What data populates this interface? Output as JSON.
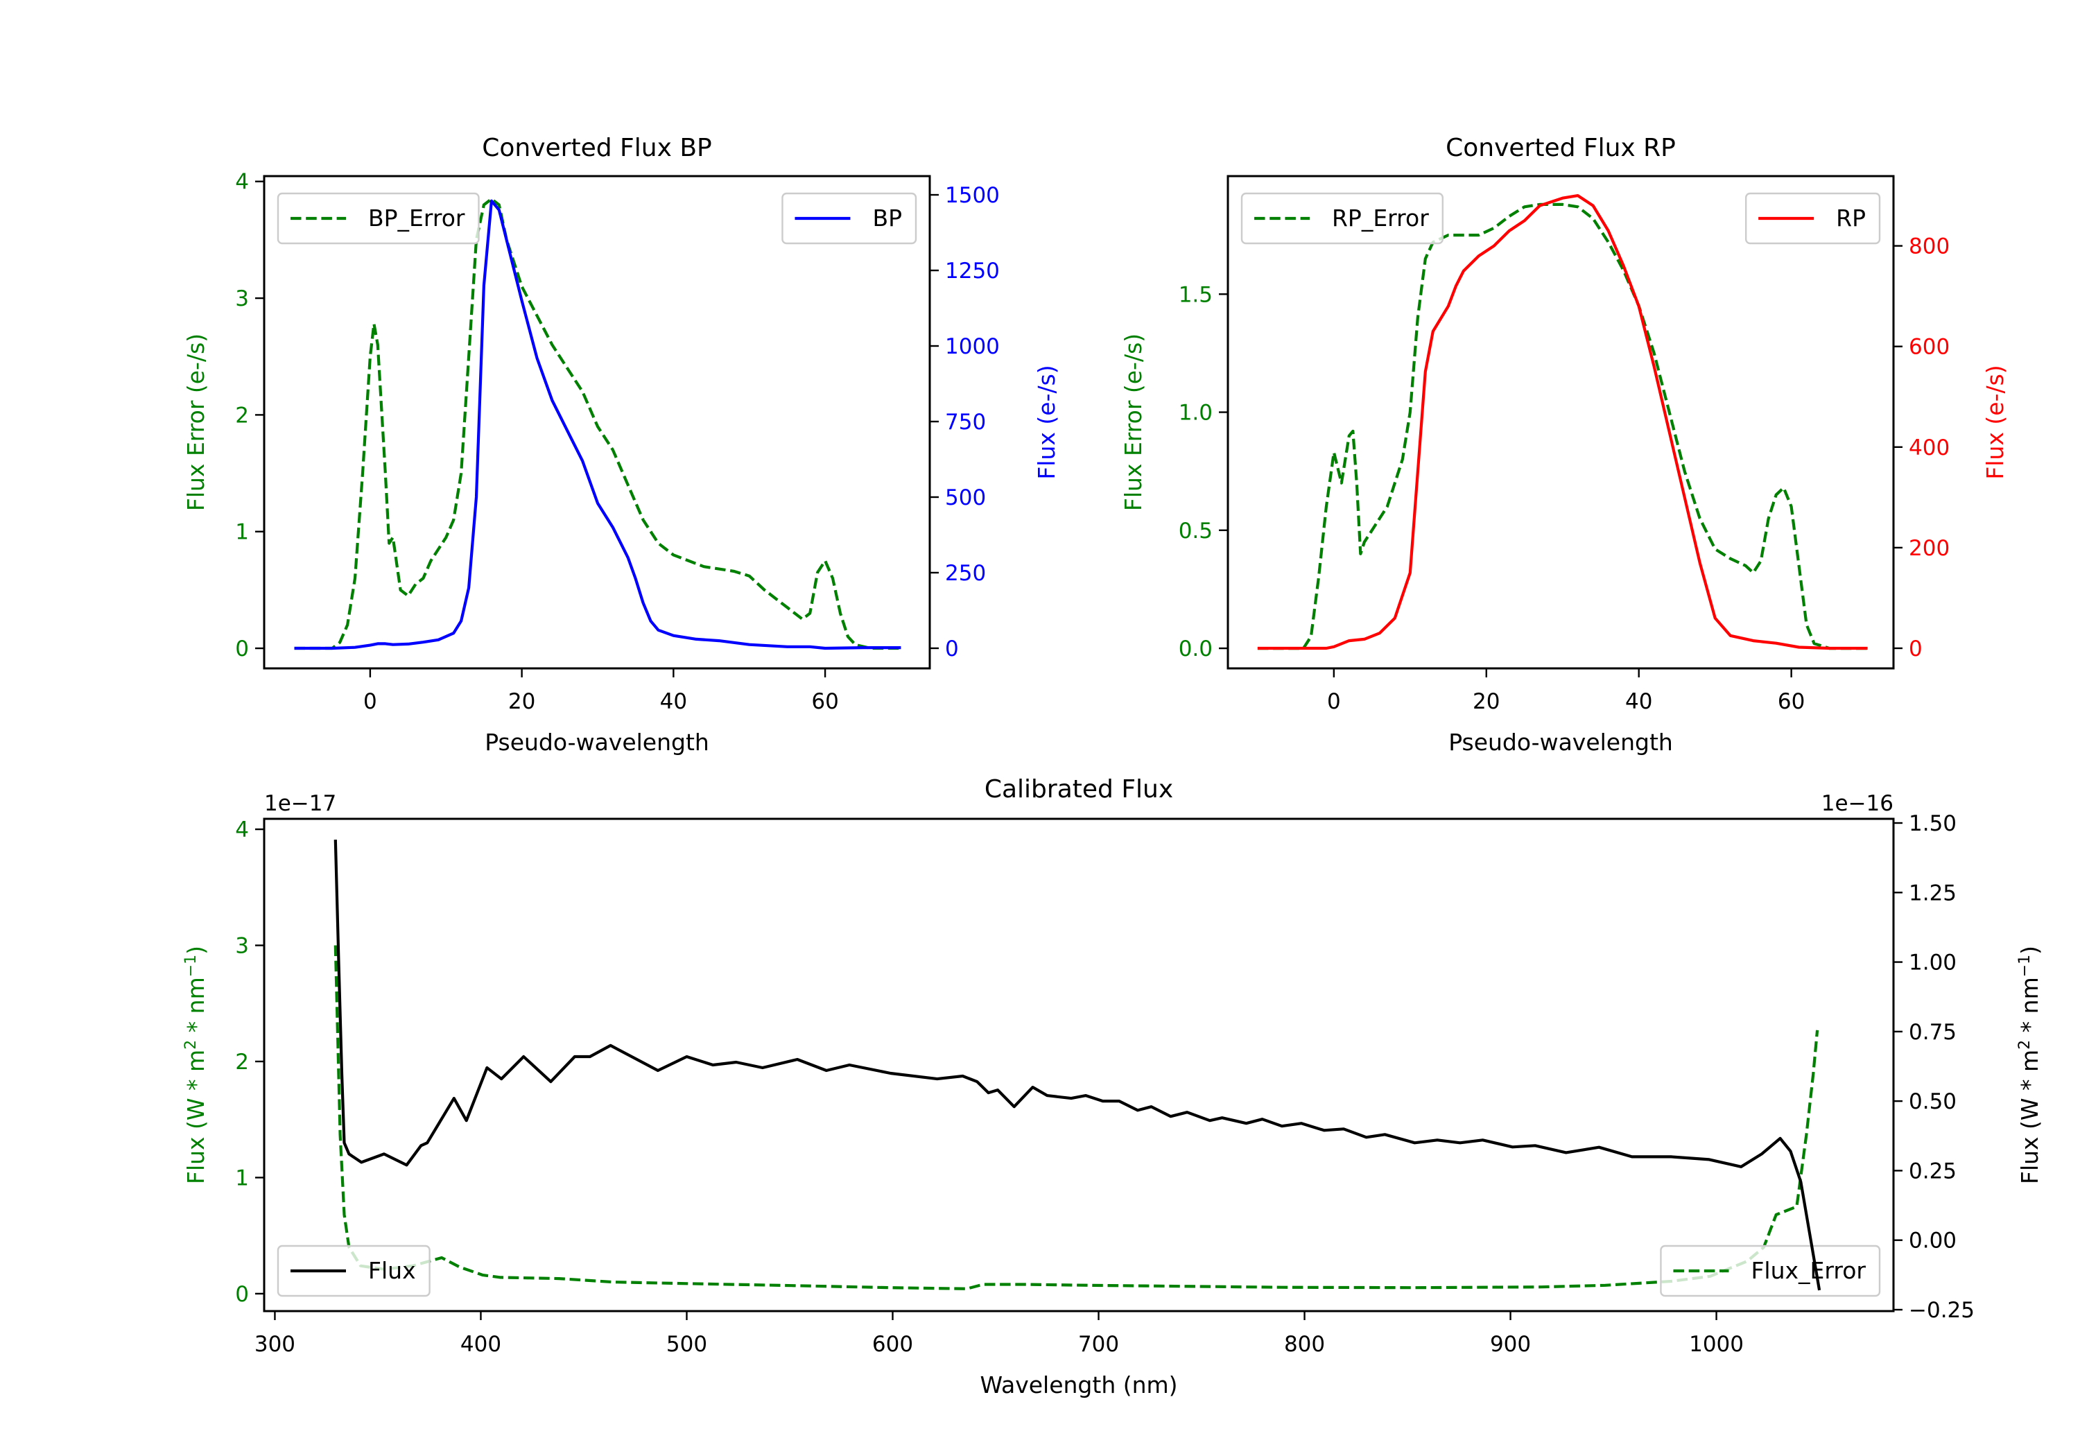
{
  "chart_data": [
    {
      "type": "line",
      "title": "Converted Flux BP",
      "xlabel": "Pseudo-wavelength",
      "xlim": [
        -13.98,
        73.8
      ],
      "xticks": [
        0,
        20,
        40,
        60
      ],
      "xtick_labels": [
        "0",
        "20",
        "40",
        "60"
      ],
      "grid": false,
      "left_axis": {
        "label": "Flux Error (e-/s)",
        "color": "#008000",
        "ylim": [
          -0.172,
          4.046
        ],
        "ticks": [
          0,
          1,
          2,
          3,
          4
        ],
        "tick_labels": [
          "0",
          "1",
          "2",
          "3",
          "4"
        ]
      },
      "right_axis": {
        "label": "Flux (e-/s)",
        "color": "#0000ff",
        "ylim": [
          -66.6,
          1562
        ],
        "ticks": [
          0,
          250,
          500,
          750,
          1000,
          1250,
          1500
        ],
        "tick_labels": [
          "0",
          "250",
          "500",
          "750",
          "1000",
          "1250",
          "1500"
        ]
      },
      "series": [
        {
          "name": "BP_Error",
          "axis": "left",
          "style": "dashed",
          "color": "#008000",
          "legend": "upper left",
          "x": [
            -10,
            -5,
            -4,
            -3,
            -2,
            -1,
            0,
            0.5,
            1,
            2,
            2.5,
            3,
            4,
            5,
            6,
            7,
            8,
            9,
            10,
            11,
            12,
            13,
            14,
            15,
            16,
            17,
            18,
            20,
            22,
            24,
            26,
            28,
            30,
            32,
            34,
            36,
            38,
            40,
            44,
            48,
            50,
            52,
            55,
            57,
            58,
            59,
            60,
            61,
            62,
            63,
            64,
            66,
            70
          ],
          "y": [
            0,
            0,
            0.05,
            0.2,
            0.6,
            1.5,
            2.5,
            2.78,
            2.6,
            1.5,
            0.9,
            0.95,
            0.5,
            0.45,
            0.55,
            0.6,
            0.75,
            0.85,
            0.95,
            1.1,
            1.5,
            2.5,
            3.5,
            3.8,
            3.85,
            3.8,
            3.5,
            3.1,
            2.85,
            2.6,
            2.4,
            2.2,
            1.9,
            1.7,
            1.4,
            1.1,
            0.9,
            0.8,
            0.7,
            0.66,
            0.62,
            0.5,
            0.35,
            0.25,
            0.3,
            0.65,
            0.75,
            0.6,
            0.3,
            0.1,
            0.03,
            0,
            0
          ]
        },
        {
          "name": "BP",
          "axis": "right",
          "style": "solid",
          "color": "#0000ff",
          "legend": "upper right",
          "x": [
            -10,
            -5,
            -2,
            0,
            1,
            2,
            3,
            5,
            7,
            9,
            11,
            12,
            13,
            14,
            15,
            16,
            17,
            18,
            20,
            22,
            24,
            26,
            28,
            30,
            32,
            34,
            35,
            36,
            37,
            38,
            40,
            43,
            46,
            50,
            55,
            58,
            60,
            65,
            70
          ],
          "y": [
            0,
            0,
            3,
            10,
            15,
            15,
            12,
            14,
            20,
            28,
            50,
            90,
            200,
            500,
            1200,
            1480,
            1450,
            1350,
            1150,
            960,
            820,
            720,
            620,
            480,
            400,
            300,
            230,
            150,
            90,
            60,
            42,
            30,
            25,
            12,
            5,
            5,
            0,
            2,
            2
          ]
        }
      ]
    },
    {
      "type": "line",
      "title": "Converted Flux RP",
      "xlabel": "Pseudo-wavelength",
      "xlim": [
        -13.9,
        73.4
      ],
      "xticks": [
        0,
        20,
        40,
        60
      ],
      "xtick_labels": [
        "0",
        "20",
        "40",
        "60"
      ],
      "grid": false,
      "left_axis": {
        "label": "Flux Error (e-/s)",
        "color": "#008000",
        "ylim": [
          -0.085,
          2.0
        ],
        "ticks": [
          0,
          0.5,
          1.0,
          1.5
        ],
        "tick_labels": [
          "0.0",
          "0.5",
          "1.0",
          "1.5"
        ]
      },
      "right_axis": {
        "label": "Flux (e-/s)",
        "color": "#ff0000",
        "ylim": [
          -40,
          938.7
        ],
        "ticks": [
          0,
          200,
          400,
          600,
          800
        ],
        "tick_labels": [
          "0",
          "200",
          "400",
          "600",
          "800"
        ]
      },
      "series": [
        {
          "name": "RP_Error",
          "axis": "left",
          "style": "dashed",
          "color": "#008000",
          "legend": "upper left",
          "x": [
            -10,
            -4,
            -3,
            -2,
            -1,
            0,
            1,
            2,
            2.5,
            3,
            3.5,
            4,
            5,
            7,
            9,
            10,
            11,
            12,
            13,
            15,
            17,
            19,
            21,
            23,
            25,
            27,
            30,
            32,
            34,
            36,
            38,
            40,
            42,
            44,
            46,
            48,
            50,
            52,
            54,
            55,
            56,
            57,
            58,
            59,
            60,
            61,
            62,
            63,
            65,
            70
          ],
          "y": [
            0,
            0,
            0.05,
            0.3,
            0.6,
            0.83,
            0.7,
            0.9,
            0.92,
            0.7,
            0.4,
            0.45,
            0.5,
            0.6,
            0.8,
            1.0,
            1.4,
            1.65,
            1.72,
            1.75,
            1.75,
            1.75,
            1.78,
            1.83,
            1.87,
            1.88,
            1.88,
            1.87,
            1.82,
            1.72,
            1.6,
            1.45,
            1.25,
            1.0,
            0.75,
            0.55,
            0.42,
            0.38,
            0.35,
            0.32,
            0.37,
            0.55,
            0.65,
            0.68,
            0.6,
            0.35,
            0.1,
            0.02,
            0,
            0
          ]
        },
        {
          "name": "RP",
          "axis": "right",
          "style": "solid",
          "color": "#ff0000",
          "legend": "upper right",
          "x": [
            -10,
            -1,
            0,
            2,
            4,
            6,
            8,
            10,
            11,
            12,
            13,
            15,
            16,
            17,
            19,
            21,
            23,
            25,
            27,
            30,
            32,
            34,
            36,
            38,
            40,
            42,
            44,
            46,
            48,
            50,
            52,
            55,
            58,
            61,
            65,
            70
          ],
          "y": [
            0,
            0,
            3,
            15,
            18,
            30,
            60,
            150,
            350,
            550,
            630,
            680,
            720,
            750,
            780,
            800,
            830,
            850,
            880,
            895,
            900,
            880,
            830,
            760,
            680,
            560,
            430,
            300,
            170,
            60,
            25,
            15,
            10,
            2,
            0,
            0
          ]
        }
      ]
    },
    {
      "type": "line",
      "title": "Calibrated Flux",
      "xlabel": "Wavelength (nm)",
      "xlim": [
        294.8,
        1086
      ],
      "xticks": [
        300,
        400,
        500,
        600,
        700,
        800,
        900,
        1000
      ],
      "xtick_labels": [
        "300",
        "400",
        "500",
        "600",
        "700",
        "800",
        "900",
        "1000"
      ],
      "grid": false,
      "left_axis": {
        "label_parts": [
          "Flux (W * m",
          "2",
          " * nm",
          "−1",
          ")"
        ],
        "offset_text": "1e−17",
        "color": "#008000",
        "ylim": [
          -0.15,
          4.09
        ],
        "ticks": [
          0,
          1,
          2,
          3,
          4
        ],
        "tick_labels": [
          "0",
          "1",
          "2",
          "3",
          "4"
        ]
      },
      "right_axis": {
        "label_parts": [
          "Flux (W * m",
          "2",
          " * nm",
          "−1",
          ")"
        ],
        "offset_text": "1e−16",
        "color": "#000000",
        "ylim": [
          -0.255,
          1.515
        ],
        "ticks": [
          -0.25,
          0,
          0.25,
          0.5,
          0.75,
          1.0,
          1.25,
          1.5
        ],
        "tick_labels": [
          "−0.25",
          "0.00",
          "0.25",
          "0.50",
          "0.75",
          "1.00",
          "1.25",
          "1.50"
        ]
      },
      "series": [
        {
          "name": "Flux_Error",
          "axis": "left",
          "style": "dashed",
          "color": "#008000",
          "legend": "lower right",
          "x": [
            329.4,
            331.7,
            333.7,
            336,
            341.6,
            353,
            367,
            381,
            389.7,
            401,
            409.5,
            438,
            464,
            500,
            551,
            599,
            636,
            644,
            664,
            695,
            789,
            852,
            915,
            946,
            978,
            997,
            1015,
            1023,
            1029,
            1039,
            1043.7,
            1047,
            1049
          ],
          "y": [
            3.0,
            1.37,
            0.68,
            0.4,
            0.24,
            0.21,
            0.24,
            0.31,
            0.23,
            0.16,
            0.14,
            0.13,
            0.1,
            0.087,
            0.07,
            0.052,
            0.042,
            0.08,
            0.08,
            0.072,
            0.055,
            0.052,
            0.058,
            0.072,
            0.107,
            0.15,
            0.28,
            0.4,
            0.68,
            0.75,
            1.37,
            1.89,
            2.27
          ]
        },
        {
          "name": "Flux",
          "axis": "right",
          "style": "solid",
          "color": "#000000",
          "legend": "lower left",
          "x": [
            329.4,
            331,
            332.5,
            333.7,
            336,
            342,
            353,
            364,
            371,
            374,
            387,
            393,
            403,
            410,
            420.8,
            434,
            445.6,
            453,
            463,
            486,
            500,
            512.7,
            524,
            536.8,
            553.7,
            567.8,
            579,
            599,
            621.6,
            634,
            641,
            646.5,
            651,
            659,
            668,
            675,
            686.7,
            693.8,
            702,
            710,
            719,
            725.6,
            735,
            743,
            754,
            760,
            771.7,
            779.5,
            789,
            798.5,
            809.5,
            819,
            830,
            839,
            853.5,
            864.5,
            875.5,
            886.5,
            901,
            912,
            927,
            943,
            959,
            978,
            996.5,
            1012,
            1022,
            1031,
            1036,
            1041,
            1050
          ],
          "y": [
            1.44,
            1.0,
            0.6,
            0.35,
            0.31,
            0.28,
            0.31,
            0.27,
            0.34,
            0.35,
            0.51,
            0.43,
            0.62,
            0.58,
            0.66,
            0.57,
            0.66,
            0.66,
            0.7,
            0.61,
            0.66,
            0.63,
            0.64,
            0.62,
            0.65,
            0.61,
            0.63,
            0.6,
            0.58,
            0.59,
            0.57,
            0.53,
            0.54,
            0.48,
            0.55,
            0.52,
            0.51,
            0.52,
            0.5,
            0.5,
            0.467,
            0.48,
            0.445,
            0.46,
            0.43,
            0.44,
            0.42,
            0.435,
            0.41,
            0.42,
            0.395,
            0.4,
            0.37,
            0.38,
            0.35,
            0.36,
            0.35,
            0.36,
            0.335,
            0.34,
            0.315,
            0.334,
            0.3,
            0.3,
            0.29,
            0.264,
            0.31,
            0.366,
            0.32,
            0.21,
            -0.18
          ]
        }
      ]
    }
  ]
}
